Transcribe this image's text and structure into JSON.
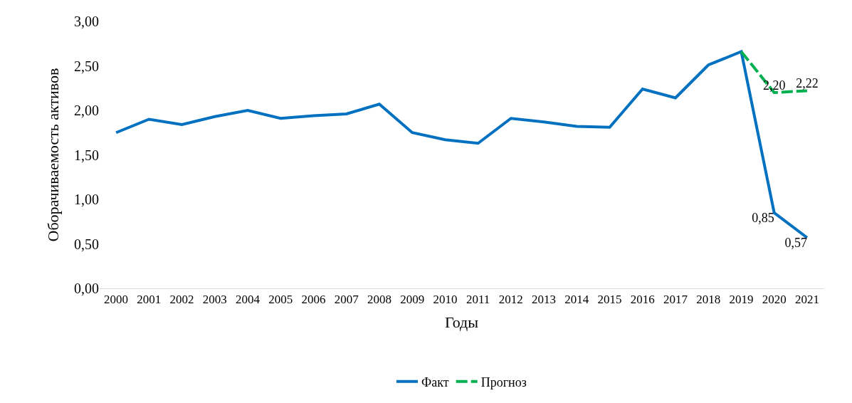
{
  "chart_data": {
    "type": "line",
    "xlabel": "Годы",
    "ylabel": "Оборачиваемость активов",
    "categories": [
      "2000",
      "2001",
      "2002",
      "2003",
      "2004",
      "2005",
      "2006",
      "2007",
      "2008",
      "2009",
      "2010",
      "2011",
      "2012",
      "2013",
      "2014",
      "2015",
      "2016",
      "2017",
      "2018",
      "2019",
      "2020",
      "2021"
    ],
    "series": [
      {
        "name": "Факт",
        "color": "#0070c0",
        "line_style": "solid",
        "values": [
          1.75,
          1.9,
          1.84,
          1.93,
          2.0,
          1.91,
          1.94,
          1.96,
          2.07,
          1.75,
          1.67,
          1.63,
          1.91,
          1.87,
          1.82,
          1.81,
          2.24,
          2.14,
          2.51,
          2.66,
          0.85,
          0.57
        ],
        "value_labels": [
          null,
          null,
          null,
          null,
          null,
          null,
          null,
          null,
          null,
          null,
          null,
          null,
          null,
          null,
          null,
          null,
          null,
          null,
          null,
          null,
          "0,85",
          "0,57"
        ]
      },
      {
        "name": "Прогноз",
        "color": "#00b050",
        "line_style": "dashed",
        "values": [
          null,
          null,
          null,
          null,
          null,
          null,
          null,
          null,
          null,
          null,
          null,
          null,
          null,
          null,
          null,
          null,
          null,
          null,
          null,
          2.66,
          2.2,
          2.22
        ],
        "value_labels": [
          null,
          null,
          null,
          null,
          null,
          null,
          null,
          null,
          null,
          null,
          null,
          null,
          null,
          null,
          null,
          null,
          null,
          null,
          null,
          null,
          "2,20",
          "2,22"
        ]
      }
    ],
    "ylim": [
      0,
      3
    ],
    "yticks": [
      {
        "value": 0,
        "label": "0,00"
      },
      {
        "value": 0.5,
        "label": "0,50"
      },
      {
        "value": 1,
        "label": "1,00"
      },
      {
        "value": 1.5,
        "label": "1,50"
      },
      {
        "value": 2,
        "label": "2,00"
      },
      {
        "value": 2.5,
        "label": "2,50"
      },
      {
        "value": 3,
        "label": "3,00"
      }
    ],
    "legend": "bottom",
    "marker": "none"
  }
}
